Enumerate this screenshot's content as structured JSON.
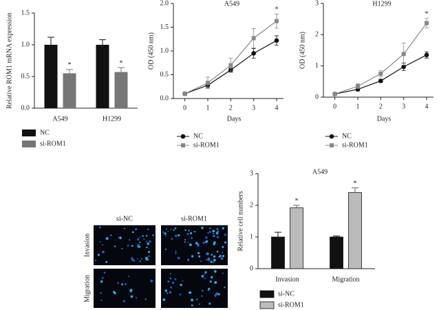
{
  "chart_data": [
    {
      "type": "bar",
      "ylabel": "Relative ROM1 mRNA expression",
      "categories": [
        "A549",
        "H1299"
      ],
      "series": [
        {
          "name": "NC",
          "color": "#111111",
          "values": [
            1.0,
            1.0
          ],
          "errors": [
            0.12,
            0.08
          ]
        },
        {
          "name": "si-ROM1",
          "color": "#777777",
          "values": [
            0.55,
            0.57
          ],
          "errors": [
            0.06,
            0.07
          ],
          "annotations": [
            "*",
            "*"
          ]
        }
      ],
      "ylim": [
        0,
        1.5
      ],
      "yticks": [
        {
          "value": 0,
          "label": "0.0"
        },
        {
          "value": 0.5,
          "label": "0.5"
        },
        {
          "value": 1,
          "label": "1.0"
        },
        {
          "value": 1.5,
          "label": "1.5"
        }
      ],
      "legend": "bottom-left"
    },
    {
      "type": "line",
      "title": "A549",
      "xlabel": "Days",
      "ylabel": "OD (450 nm)",
      "x": [
        0,
        1,
        2,
        3,
        4
      ],
      "series": [
        {
          "name": "NC",
          "color": "#111111",
          "marker": "circle",
          "values": [
            0.1,
            0.28,
            0.6,
            0.95,
            1.22
          ],
          "errors": [
            0.03,
            0.05,
            0.04,
            0.1,
            0.1
          ]
        },
        {
          "name": "si-ROM1",
          "color": "#888888",
          "marker": "square",
          "values": [
            0.1,
            0.33,
            0.7,
            1.27,
            1.63
          ],
          "errors": [
            0.04,
            0.12,
            0.15,
            0.2,
            0.15
          ],
          "annotations": [
            null,
            null,
            null,
            null,
            "*"
          ]
        }
      ],
      "xlim": [
        -0.5,
        4.3
      ],
      "xticks": [
        0,
        1,
        2,
        3,
        4
      ],
      "ylim": [
        0,
        2
      ],
      "yticks": [
        {
          "value": 0,
          "label": "0.0"
        },
        {
          "value": 0.5,
          "label": "0.5"
        },
        {
          "value": 1,
          "label": "1.0"
        },
        {
          "value": 1.5,
          "label": "1.5"
        },
        {
          "value": 2,
          "label": "2.0"
        }
      ],
      "legend": "bottom-left"
    },
    {
      "type": "line",
      "title": "H1299",
      "xlabel": "Days",
      "ylabel": "OD (450 nm)",
      "x": [
        0,
        1,
        2,
        3,
        4
      ],
      "series": [
        {
          "name": "NC",
          "color": "#111111",
          "marker": "circle",
          "values": [
            0.1,
            0.25,
            0.52,
            0.97,
            1.35
          ],
          "errors": [
            0.03,
            0.05,
            0.05,
            0.12,
            0.1
          ]
        },
        {
          "name": "si-ROM1",
          "color": "#888888",
          "marker": "square",
          "values": [
            0.1,
            0.35,
            0.75,
            1.38,
            2.37
          ],
          "errors": [
            0.05,
            0.08,
            0.1,
            0.35,
            0.15
          ],
          "annotations": [
            null,
            null,
            null,
            null,
            "*"
          ]
        }
      ],
      "xlim": [
        -0.5,
        4.3
      ],
      "xticks": [
        0,
        1,
        2,
        3,
        4
      ],
      "ylim": [
        0,
        3
      ],
      "yticks": [
        0,
        1,
        2,
        3
      ],
      "legend": "bottom-left"
    },
    {
      "type": "bar",
      "title": "A549",
      "ylabel": "Relative cell numbers",
      "categories": [
        "Invasion",
        "Migration"
      ],
      "series": [
        {
          "name": "si-NC",
          "color": "#111111",
          "values": [
            1.0,
            1.0
          ],
          "errors": [
            0.15,
            0.03
          ]
        },
        {
          "name": "si-ROM1",
          "color": "#bbbbbb",
          "values": [
            1.92,
            2.4
          ],
          "errors": [
            0.08,
            0.15
          ],
          "annotations": [
            "*",
            "*"
          ]
        }
      ],
      "edgecolor": "#111111",
      "ylim": [
        0,
        3
      ],
      "yticks": [
        0,
        1,
        2,
        3
      ],
      "legend": "bottom-left"
    }
  ],
  "micrographs": {
    "columns": [
      "si-NC",
      "si-ROM1"
    ],
    "rows": [
      "Invasion",
      "Migration"
    ]
  }
}
